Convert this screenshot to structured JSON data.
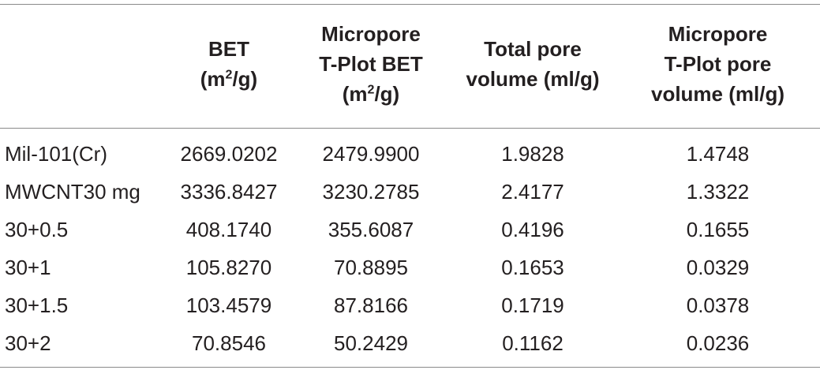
{
  "table": {
    "headers": [
      {
        "lines": [
          ""
        ]
      },
      {
        "lines": [
          "BET",
          "(m2/g)"
        ]
      },
      {
        "lines": [
          "Micropore",
          "T-Plot BET",
          "(m2/g)"
        ]
      },
      {
        "lines": [
          "Total pore",
          "volume (ml/g)"
        ]
      },
      {
        "lines": [
          "Micropore",
          "T-Plot pore",
          "volume (ml/g)"
        ]
      }
    ],
    "rows": [
      [
        "Mil-101(Cr)",
        "2669.0202",
        "2479.9900",
        "1.9828",
        "1.4748"
      ],
      [
        "MWCNT30 mg",
        "3336.8427",
        "3230.2785",
        "2.4177",
        "1.3322"
      ],
      [
        "30+0.5",
        "408.1740",
        "355.6087",
        "0.4196",
        "0.1655"
      ],
      [
        "30+1",
        "105.8270",
        "70.8895",
        "0.1653",
        "0.0329"
      ],
      [
        "30+1.5",
        "103.4579",
        "87.8166",
        "0.1719",
        "0.0378"
      ],
      [
        "30+2",
        "70.8546",
        "50.2429",
        "0.1162",
        "0.0236"
      ]
    ]
  }
}
